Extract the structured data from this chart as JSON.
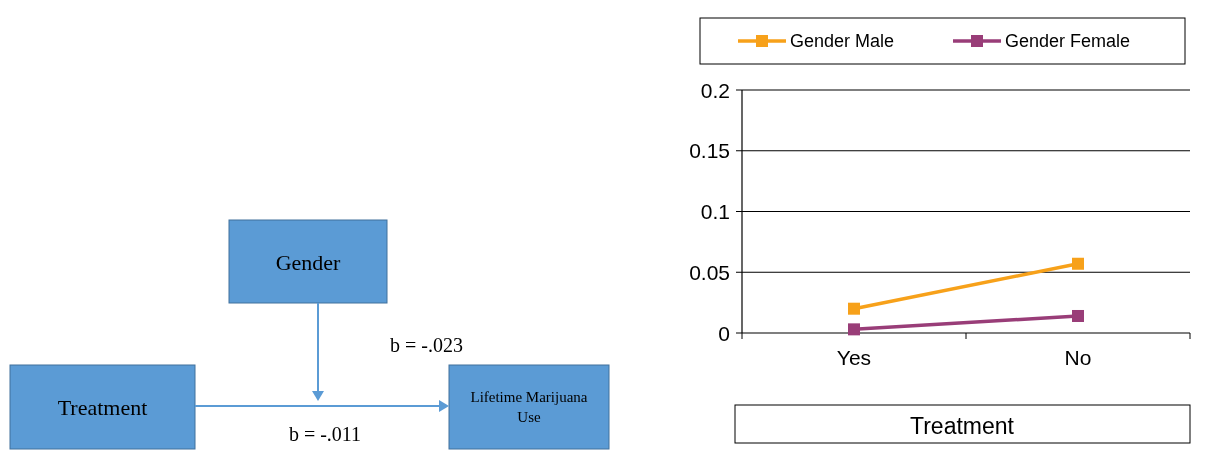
{
  "chart_data": [
    {
      "type": "other",
      "annotations": [
        "Gender",
        "Treatment",
        "Lifetime Marijuana Use",
        "b = -.023",
        "b = -.011"
      ]
    },
    {
      "type": "line",
      "categories": [
        "Yes",
        "No"
      ],
      "xlabel": "Treatment",
      "ylim": [
        0,
        0.2
      ],
      "yticks": [
        0,
        0.05,
        0.1,
        0.15,
        0.2
      ],
      "grid": "y",
      "legend": "top",
      "marker": "square",
      "series": [
        {
          "name": "Gender Male",
          "color": "#f7a11a",
          "values": [
            0.02,
            0.057
          ]
        },
        {
          "name": "Gender Female",
          "color": "#993d78",
          "values": [
            0.003,
            0.014
          ]
        }
      ]
    }
  ]
}
